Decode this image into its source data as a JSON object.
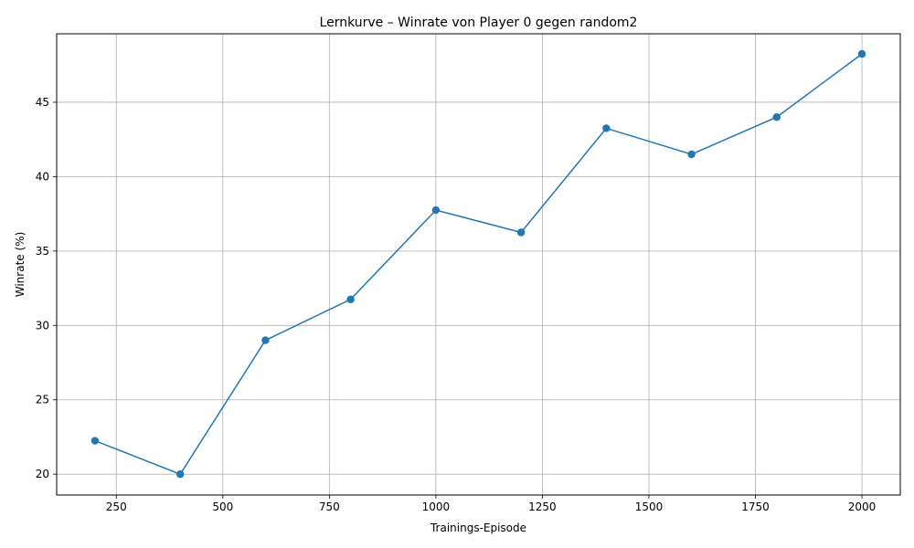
{
  "chart_data": {
    "type": "line",
    "title": "Lernkurve – Winrate von Player 0 gegen random2",
    "xlabel": "Trainings-Episode",
    "ylabel": "Winrate (%)",
    "x": [
      200,
      400,
      600,
      800,
      1000,
      1200,
      1400,
      1600,
      1800,
      2000
    ],
    "series": [
      {
        "values": [
          22.25,
          20.0,
          29.0,
          31.75,
          37.75,
          36.25,
          43.25,
          41.5,
          44.0,
          48.25
        ],
        "color": "#1f77b4",
        "marker": "circle"
      }
    ],
    "xlim": [
      110,
      2090
    ],
    "ylim": [
      18.6,
      49.6
    ],
    "xticks": [
      250,
      500,
      750,
      1000,
      1250,
      1500,
      1750,
      2000
    ],
    "yticks": [
      20,
      25,
      30,
      35,
      40,
      45
    ],
    "grid": true,
    "legend": "none"
  }
}
